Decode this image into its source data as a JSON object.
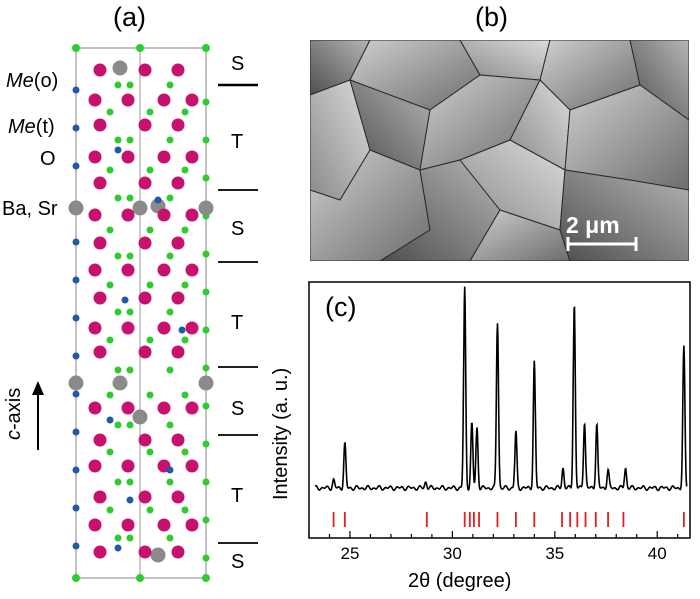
{
  "panels": {
    "a": {
      "label": "(a)"
    },
    "b": {
      "label": "(b)"
    },
    "c": {
      "label": "(c)"
    }
  },
  "crystal": {
    "legend": [
      {
        "italic": "Me",
        "rest": "(o)",
        "color": "#c8106e"
      },
      {
        "italic": "Me",
        "rest": "(t)",
        "color": "#1e5aa8"
      },
      {
        "italic": "",
        "rest": "O",
        "color": "#2ecc2e"
      },
      {
        "italic": "",
        "rest": "Ba, Sr",
        "color": "#8a8a8a"
      }
    ],
    "layers": [
      "S",
      "T",
      "S",
      "T",
      "S",
      "T",
      "S"
    ],
    "axis_label_italic": "c",
    "axis_label_rest": "-axis"
  },
  "sem": {
    "scalebar_label": "2 μm"
  },
  "xrd": {
    "xlabel": "2θ (degree)",
    "ylabel": "Intensity (a. u.)",
    "xticks": [
      "25",
      "30",
      "35",
      "40"
    ]
  },
  "chart_data": {
    "type": "line",
    "title": "",
    "xlabel": "2θ (degree)",
    "ylabel": "Intensity (a. u.)",
    "xlim": [
      23,
      41.6
    ],
    "ylim": [
      0,
      100
    ],
    "xticks": [
      25,
      30,
      35,
      40
    ],
    "line_color": "#000000",
    "reference_color": "#e02020",
    "baseline": 6,
    "peaks": [
      {
        "x": 24.2,
        "y": 4
      },
      {
        "x": 24.75,
        "y": 22
      },
      {
        "x": 28.7,
        "y": 3
      },
      {
        "x": 30.6,
        "y": 100
      },
      {
        "x": 30.95,
        "y": 32
      },
      {
        "x": 31.2,
        "y": 30
      },
      {
        "x": 32.2,
        "y": 83
      },
      {
        "x": 33.1,
        "y": 28
      },
      {
        "x": 34.0,
        "y": 63
      },
      {
        "x": 35.4,
        "y": 10
      },
      {
        "x": 35.95,
        "y": 92
      },
      {
        "x": 36.45,
        "y": 33
      },
      {
        "x": 37.05,
        "y": 32
      },
      {
        "x": 37.6,
        "y": 9
      },
      {
        "x": 38.45,
        "y": 10
      },
      {
        "x": 41.3,
        "y": 70
      }
    ],
    "reference_positions": [
      24.2,
      24.75,
      28.75,
      30.6,
      30.85,
      31.05,
      31.3,
      32.2,
      33.1,
      34.0,
      35.35,
      35.75,
      36.1,
      36.5,
      37.0,
      37.6,
      38.35,
      41.3
    ]
  }
}
